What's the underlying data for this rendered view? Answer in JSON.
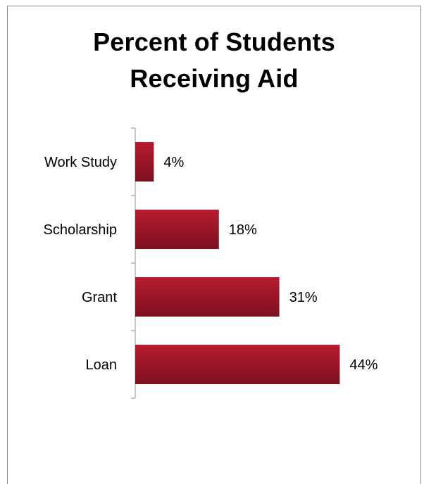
{
  "chart_data": {
    "type": "bar",
    "orientation": "horizontal",
    "title": "Percent  of Students Receiving Aid",
    "title_lines": [
      "Percent  of Students",
      "Receiving Aid"
    ],
    "categories": [
      "Work Study",
      "Scholarship",
      "Grant",
      "Loan"
    ],
    "values": [
      4,
      18,
      31,
      44
    ],
    "value_labels": [
      "4%",
      "18%",
      "31%",
      "44%"
    ],
    "unit": "%",
    "xlim": [
      0,
      50
    ],
    "grid": false,
    "legend": "none",
    "bar_color": "#a3172a",
    "bar_color_dark": "#7a1020"
  }
}
